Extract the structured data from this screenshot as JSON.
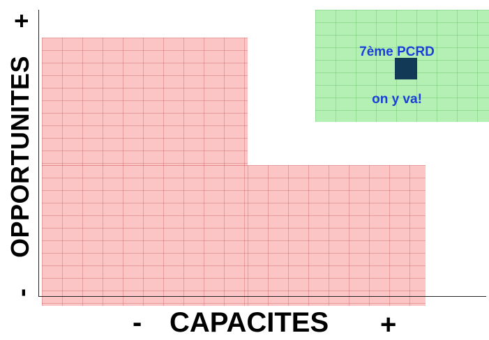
{
  "y_axis": {
    "plus": "+",
    "title": "OPPORTUNITES",
    "minus": "-"
  },
  "x_axis": {
    "minus": "-",
    "title": "CAPACITES",
    "plus": "+"
  },
  "green_box": {
    "title": "7ème PCRD",
    "subtitle": "on y va!"
  },
  "colors": {
    "axis": "#222222",
    "red_region": "#f89696",
    "green_region": "#b4f0b4",
    "label_text": "#1a3fd8",
    "marker": "#123a56"
  }
}
